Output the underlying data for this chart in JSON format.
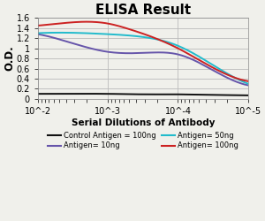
{
  "title": "ELISA Result",
  "xlabel": "Serial Dilutions of Antibody",
  "ylabel": "O.D.",
  "xlim_left": 0.01,
  "xlim_right": 1e-05,
  "ylim": [
    0,
    1.6
  ],
  "yticks": [
    0,
    0.2,
    0.4,
    0.6,
    0.8,
    1.0,
    1.2,
    1.4,
    1.6
  ],
  "ytick_labels": [
    "0",
    "0.2",
    "0.4",
    "0.6",
    "0.8",
    "1",
    "1.2",
    "1.4",
    "1.6"
  ],
  "xtick_vals": [
    0.01,
    0.001,
    0.0001,
    1e-05
  ],
  "xtick_labels": [
    "10^-2",
    "10^-3",
    "10^-4",
    "10^-5"
  ],
  "series": [
    {
      "label": "Control Antigen = 100ng",
      "color": "#111111",
      "x": [
        0.01,
        0.005,
        0.001,
        0.0003,
        0.0001,
        3e-05,
        1e-05
      ],
      "y": [
        0.1,
        0.1,
        0.1,
        0.09,
        0.09,
        0.08,
        0.07
      ]
    },
    {
      "label": "Antigen= 10ng",
      "color": "#6655aa",
      "x": [
        0.01,
        0.005,
        0.001,
        0.0003,
        0.0001,
        3e-05,
        1e-05
      ],
      "y": [
        1.28,
        1.18,
        0.93,
        0.91,
        0.88,
        0.55,
        0.27
      ]
    },
    {
      "label": "Antigen= 50ng",
      "color": "#22bbcc",
      "x": [
        0.01,
        0.005,
        0.001,
        0.0003,
        0.0001,
        3e-05,
        1e-05
      ],
      "y": [
        1.3,
        1.31,
        1.28,
        1.22,
        1.05,
        0.65,
        0.3
      ]
    },
    {
      "label": "Antigen= 100ng",
      "color": "#cc2222",
      "x": [
        0.01,
        0.005,
        0.001,
        0.0005,
        0.0001,
        3e-05,
        1e-05
      ],
      "y": [
        1.45,
        1.49,
        1.49,
        1.38,
        1.0,
        0.6,
        0.35
      ]
    }
  ],
  "legend_order": [
    0,
    1,
    2,
    3
  ],
  "background_color": "#f0f0eb",
  "grid_color": "#bbbbbb",
  "title_fontsize": 11,
  "label_fontsize": 7.5,
  "tick_fontsize": 7,
  "legend_fontsize": 6
}
